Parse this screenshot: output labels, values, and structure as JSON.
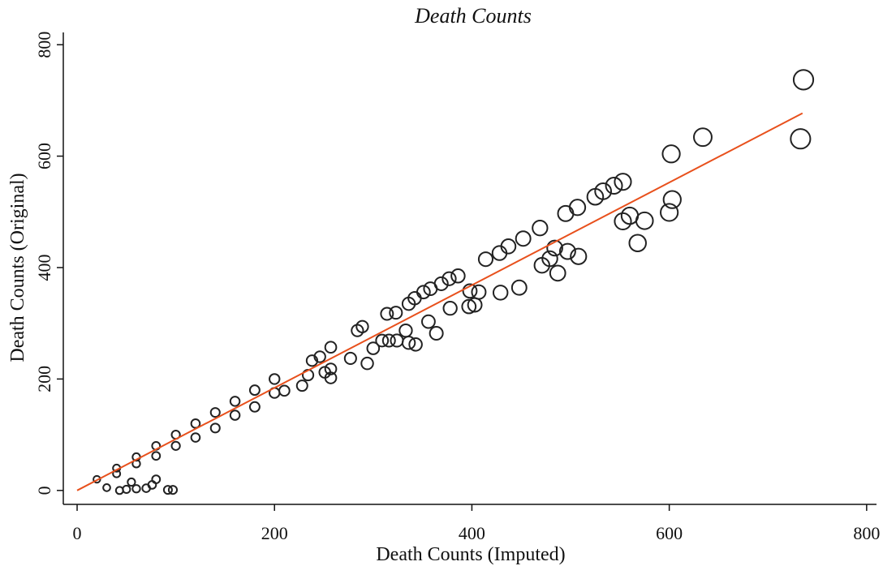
{
  "chart_data": {
    "type": "scatter",
    "title": "Death Counts",
    "x_label": "Death Counts (Imputed)",
    "y_label": "Death Counts (Original)",
    "xlim": [
      -14,
      810
    ],
    "ylim": [
      -25,
      822
    ],
    "xticks": [
      0,
      200,
      400,
      600,
      800
    ],
    "yticks": [
      0,
      200,
      400,
      600,
      800
    ],
    "marker_color": "#222222",
    "points": {
      "x": [
        736,
        733,
        634,
        602,
        603,
        600,
        568,
        575,
        560,
        553,
        553,
        544,
        533,
        525,
        507,
        508,
        495,
        497,
        487,
        484,
        479,
        471,
        469,
        452,
        437,
        428,
        414,
        429,
        448,
        403,
        397,
        398,
        407,
        386,
        377,
        369,
        378,
        364,
        358,
        351,
        342,
        336,
        356,
        343,
        336,
        323,
        314,
        289,
        284,
        294,
        300,
        309,
        316,
        324,
        333,
        257,
        246,
        238,
        257,
        257,
        234,
        228,
        210,
        251,
        277,
        20,
        40,
        60,
        80,
        100,
        120,
        140,
        160,
        180,
        200,
        40,
        60,
        80,
        100,
        120,
        140,
        160,
        180,
        200,
        43,
        50,
        60,
        70,
        76,
        80,
        92,
        97,
        55,
        30
      ],
      "y": [
        737,
        631,
        634,
        604,
        522,
        499,
        444,
        484,
        493,
        483,
        554,
        547,
        537,
        527,
        508,
        420,
        497,
        429,
        390,
        435,
        416,
        404,
        471,
        452,
        438,
        426,
        415,
        355,
        364,
        333,
        330,
        358,
        356,
        385,
        380,
        371,
        327,
        282,
        362,
        356,
        345,
        335,
        303,
        262,
        265,
        319,
        317,
        294,
        287,
        228,
        255,
        269,
        269,
        269,
        287,
        257,
        240,
        233,
        218,
        202,
        207,
        188,
        179,
        212,
        237,
        20,
        40,
        60,
        80,
        100,
        120,
        140,
        160,
        180,
        200,
        30,
        48,
        62,
        80,
        95,
        112,
        135,
        150,
        175,
        0,
        2,
        3,
        4,
        10,
        20,
        1,
        1,
        15,
        5
      ]
    },
    "fit_line": {
      "x": [
        0,
        735
      ],
      "y": [
        0,
        677
      ],
      "color": "#e8501c"
    }
  }
}
